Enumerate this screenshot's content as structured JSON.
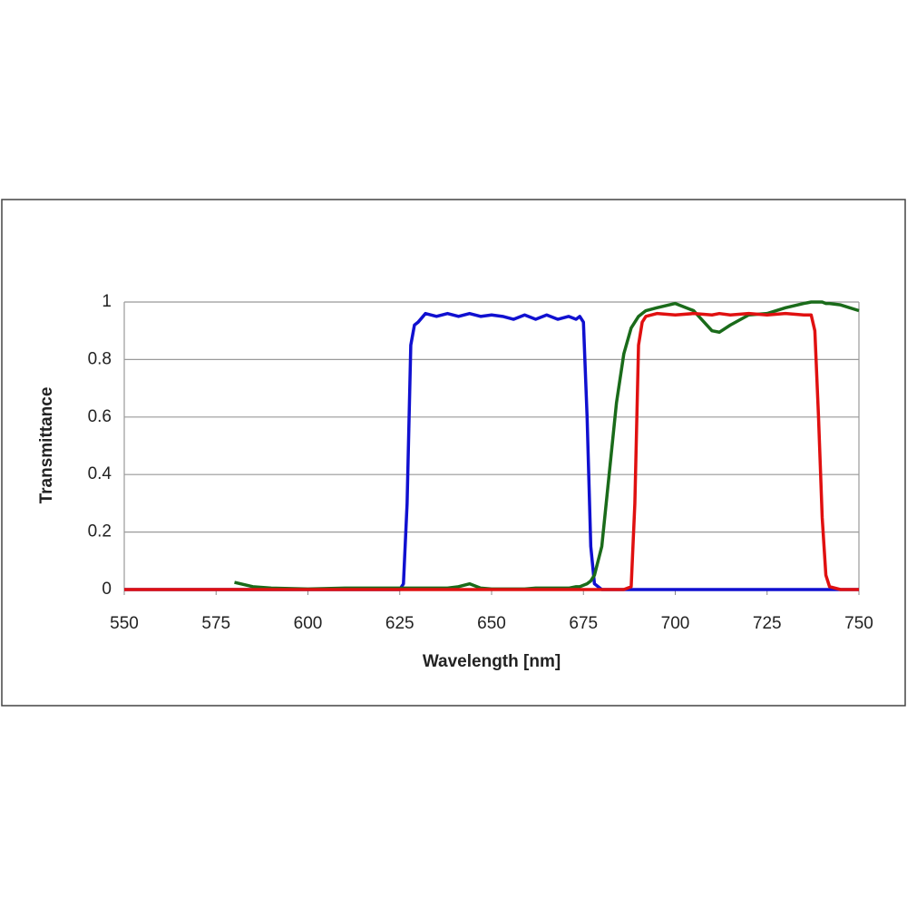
{
  "chart_data": {
    "type": "line",
    "xlabel": "Wavelength [nm]",
    "ylabel": "Transmittance",
    "x": [
      550,
      575,
      580,
      585,
      590,
      600,
      610,
      620,
      625,
      626,
      627,
      628,
      629,
      630,
      632,
      635,
      638,
      641,
      644,
      647,
      650,
      653,
      656,
      659,
      662,
      665,
      668,
      671,
      673,
      674,
      675,
      676,
      677,
      678,
      680,
      682,
      684,
      686,
      688,
      689,
      690,
      691,
      692,
      695,
      700,
      705,
      710,
      712,
      715,
      720,
      725,
      730,
      735,
      737,
      738,
      739,
      740,
      741,
      742,
      745,
      750
    ],
    "series": [
      {
        "color": "#1010d0",
        "values": [
          0,
          0,
          0,
          0,
          0,
          0,
          0,
          0,
          0,
          0.02,
          0.3,
          0.85,
          0.92,
          0.93,
          0.96,
          0.95,
          0.96,
          0.95,
          0.96,
          0.95,
          0.955,
          0.95,
          0.94,
          0.955,
          0.94,
          0.955,
          0.94,
          0.95,
          0.94,
          0.95,
          0.93,
          0.6,
          0.15,
          0.02,
          0,
          0,
          0,
          0,
          0,
          0,
          0,
          0,
          0,
          0,
          0,
          0,
          0,
          0,
          0,
          0,
          0,
          0,
          0,
          0,
          0,
          0,
          0,
          0,
          0,
          0,
          0
        ]
      },
      {
        "color": "#1a6b1a",
        "values": [
          null,
          null,
          0.025,
          0.01,
          0.005,
          0.002,
          0.005,
          0.005,
          0.005,
          0.005,
          0.005,
          0.005,
          0.005,
          0.005,
          0.005,
          0.005,
          0.005,
          0.01,
          0.02,
          0.005,
          0.002,
          0.002,
          0.002,
          0.002,
          0.005,
          0.005,
          0.005,
          0.005,
          0.01,
          0.01,
          0.015,
          0.02,
          0.03,
          0.05,
          0.15,
          0.4,
          0.65,
          0.82,
          0.91,
          0.93,
          0.95,
          0.96,
          0.97,
          0.98,
          0.995,
          0.97,
          0.9,
          0.895,
          0.92,
          0.955,
          0.96,
          0.98,
          0.995,
          1.0,
          1.0,
          1.0,
          1.0,
          0.995,
          0.995,
          0.99,
          0.97
        ]
      },
      {
        "color": "#e01010",
        "values": [
          0,
          0,
          0,
          0,
          0,
          0,
          0,
          0,
          0,
          0,
          0,
          0,
          0,
          0,
          0,
          0,
          0,
          0,
          0,
          0,
          0,
          0,
          0,
          0,
          0,
          0,
          0,
          0,
          0,
          0,
          0,
          0,
          0,
          0,
          0,
          0,
          0,
          0,
          0.01,
          0.3,
          0.85,
          0.93,
          0.95,
          0.96,
          0.955,
          0.96,
          0.955,
          0.96,
          0.955,
          0.96,
          0.955,
          0.96,
          0.955,
          0.955,
          0.9,
          0.6,
          0.25,
          0.05,
          0.01,
          0,
          0
        ]
      }
    ],
    "xlim": [
      550,
      750
    ],
    "xticks": [
      550,
      575,
      600,
      625,
      650,
      675,
      700,
      725,
      750
    ],
    "ylim": [
      0,
      1
    ],
    "yticks": [
      0,
      0.2,
      0.4,
      0.6,
      0.8,
      1
    ],
    "grid": true
  }
}
